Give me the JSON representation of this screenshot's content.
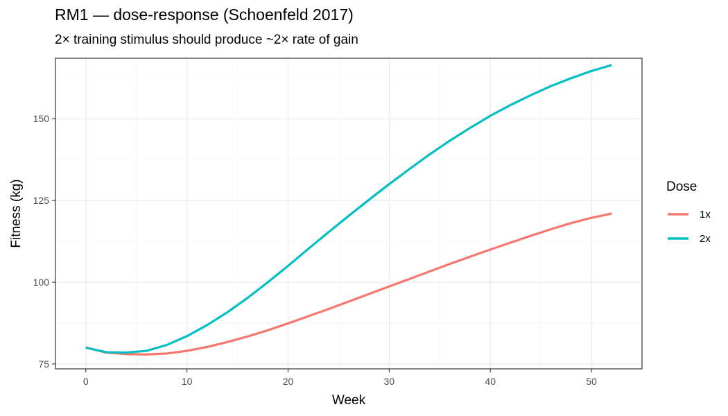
{
  "chart_data": {
    "type": "line",
    "title": "RM1 — dose-response (Schoenfeld 2017)",
    "subtitle": "2× training stimulus should produce ~2× rate of gain",
    "xlabel": "Week",
    "ylabel": "Fitness (kg)",
    "xlim": [
      -3,
      55
    ],
    "ylim": [
      73.5,
      168.5
    ],
    "x_ticks": [
      0,
      10,
      20,
      30,
      40,
      50
    ],
    "y_ticks": [
      75,
      100,
      125,
      150
    ],
    "grid": true,
    "legend": {
      "title": "Dose",
      "position": "right"
    },
    "x": [
      0,
      2,
      4,
      6,
      8,
      10,
      12,
      14,
      16,
      18,
      20,
      22,
      24,
      26,
      28,
      30,
      32,
      34,
      36,
      38,
      40,
      42,
      44,
      46,
      48,
      50,
      52
    ],
    "series": [
      {
        "name": "1x",
        "color": "#F8766D",
        "values": [
          80.0,
          78.5,
          78.0,
          77.9,
          78.2,
          79.0,
          80.2,
          81.7,
          83.4,
          85.3,
          87.4,
          89.6,
          91.8,
          94.1,
          96.4,
          98.7,
          101.0,
          103.3,
          105.6,
          107.8,
          110.0,
          112.1,
          114.2,
          116.2,
          118.1,
          119.7,
          121.0
        ]
      },
      {
        "name": "2x",
        "color": "#00BFC4",
        "values": [
          80.0,
          78.6,
          78.5,
          79.0,
          80.8,
          83.5,
          86.9,
          90.8,
          95.2,
          100.0,
          105.0,
          110.2,
          115.3,
          120.3,
          125.2,
          130.0,
          134.6,
          139.1,
          143.3,
          147.2,
          150.9,
          154.2,
          157.2,
          160.0,
          162.4,
          164.6,
          166.4
        ]
      }
    ]
  }
}
